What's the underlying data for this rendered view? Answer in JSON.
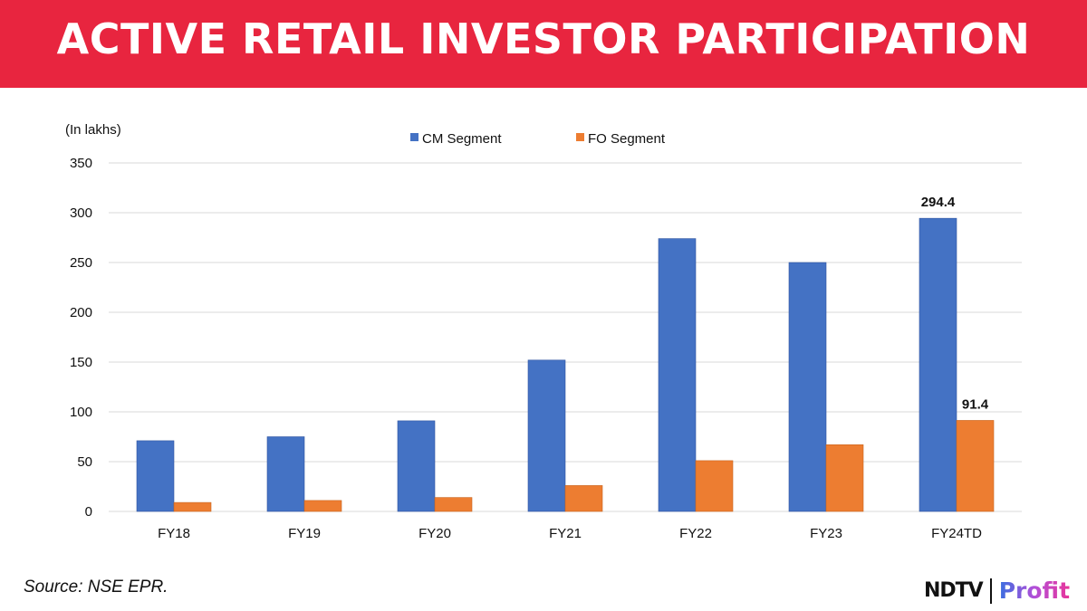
{
  "header": {
    "title": "ACTIVE RETAIL INVESTOR PARTICIPATION"
  },
  "footer": {
    "source": "Source: NSE EPR.",
    "logo_left": "NDTV",
    "logo_right": "Profit"
  },
  "chart_data": {
    "type": "bar",
    "title": "",
    "unit_label": "(In lakhs)",
    "categories": [
      "FY18",
      "FY19",
      "FY20",
      "FY21",
      "FY22",
      "FY23",
      "FY24TD"
    ],
    "series": [
      {
        "name": "CM Segment",
        "color": "#4472c4",
        "values": [
          71,
          75,
          91,
          152,
          274,
          250,
          294.4
        ]
      },
      {
        "name": "FO Segment",
        "color": "#ed7d31",
        "values": [
          9,
          11,
          14,
          26,
          51,
          67,
          91.4
        ]
      }
    ],
    "data_labels": {
      "CM Segment": {
        "6": "294.4"
      },
      "FO Segment": {
        "6": "91.4"
      }
    },
    "yticks": [
      "0",
      "50",
      "100",
      "150",
      "200",
      "250",
      "300",
      "350"
    ],
    "ylim": [
      0,
      350
    ],
    "grid": true,
    "legend": "top"
  }
}
